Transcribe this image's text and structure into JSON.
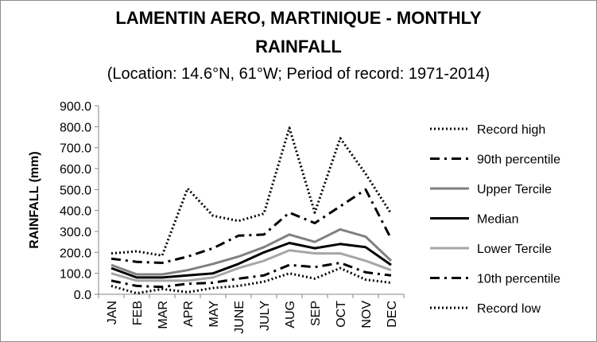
{
  "chart_data": {
    "type": "line",
    "title_line1": "LAMENTIN AERO, MARTINIQUE - MONTHLY",
    "title_line2": "RAINFALL",
    "subtitle": "(Location: 14.6°N, 61°W; Period of record: 1971-2014)",
    "xlabel": "",
    "ylabel": "RAINFALL (mm)",
    "ylim": [
      0,
      900
    ],
    "yticks": [
      "0.0",
      "100.0",
      "200.0",
      "300.0",
      "400.0",
      "500.0",
      "600.0",
      "700.0",
      "800.0",
      "900.0"
    ],
    "grid": false,
    "legend_position": "right",
    "categories": [
      "JAN",
      "FEB",
      "MAR",
      "APR",
      "MAY",
      "JUNE",
      "JULY",
      "AUG",
      "SEP",
      "OCT",
      "NOV",
      "DEC"
    ],
    "series": [
      {
        "name": "Record high",
        "style": "dotted",
        "color": "#000000",
        "values": [
          195,
          205,
          185,
          505,
          375,
          350,
          385,
          795,
          390,
          745,
          575,
          385
        ]
      },
      {
        "name": "90th percentile",
        "style": "dashdot",
        "color": "#000000",
        "values": [
          170,
          155,
          150,
          180,
          220,
          280,
          285,
          390,
          340,
          420,
          500,
          265
        ]
      },
      {
        "name": "Upper Tercile",
        "style": "solid",
        "color": "#808080",
        "values": [
          140,
          95,
          95,
          115,
          145,
          180,
          225,
          285,
          250,
          310,
          275,
          160
        ]
      },
      {
        "name": "Median",
        "style": "solid",
        "color": "#000000",
        "values": [
          125,
          80,
          80,
          90,
          100,
          145,
          200,
          245,
          220,
          240,
          225,
          140
        ]
      },
      {
        "name": "Lower Tercile",
        "style": "solid",
        "color": "#a6a6a6",
        "values": [
          100,
          65,
          65,
          65,
          80,
          125,
          160,
          210,
          195,
          195,
          160,
          115
        ]
      },
      {
        "name": "10th percentile",
        "style": "dashdot",
        "color": "#000000",
        "values": [
          65,
          40,
          35,
          50,
          55,
          75,
          90,
          140,
          130,
          150,
          105,
          90
        ]
      },
      {
        "name": "Record low",
        "style": "dotted",
        "color": "#000000",
        "values": [
          40,
          5,
          25,
          10,
          30,
          40,
          60,
          100,
          75,
          125,
          70,
          55
        ]
      }
    ]
  }
}
